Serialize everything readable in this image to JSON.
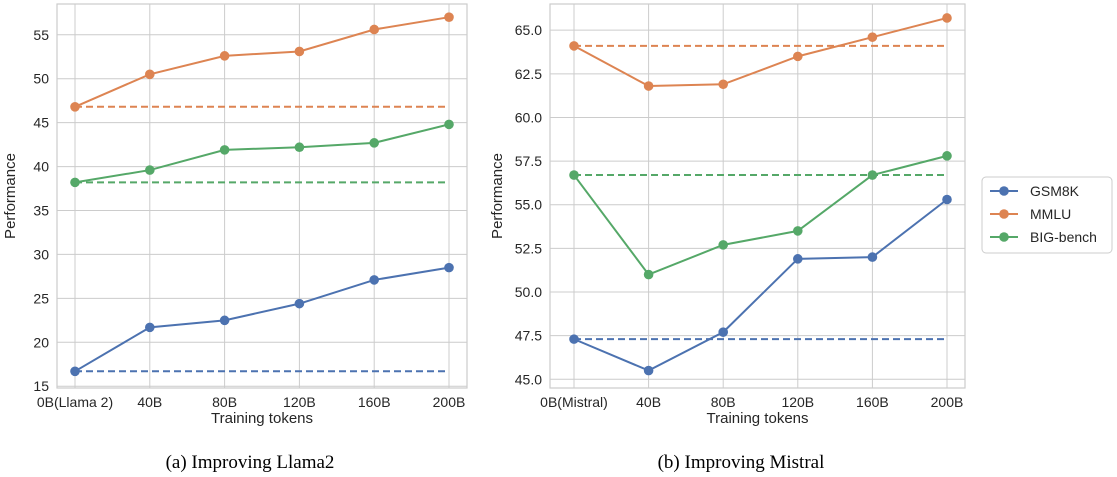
{
  "colors": {
    "GSM8K": "#4c72b0",
    "MMLU": "#dd8452",
    "BIG-bench": "#55a868",
    "grid": "#cccccc",
    "frame": "#cccccc"
  },
  "legend": {
    "entries": [
      "GSM8K",
      "MMLU",
      "BIG-bench"
    ],
    "placement": "right"
  },
  "chart_data": [
    {
      "type": "line",
      "caption": "(a) Improving Llama2",
      "xlabel": "Training tokens",
      "ylabel": "Performance",
      "categories": [
        "0B(Llama 2)",
        "40B",
        "80B",
        "120B",
        "160B",
        "200B"
      ],
      "yticks": [
        15,
        20,
        25,
        30,
        35,
        40,
        45,
        50,
        55
      ],
      "ylim": [
        14.8,
        58.5
      ],
      "grid": true,
      "series": [
        {
          "name": "GSM8K",
          "values": [
            16.7,
            21.7,
            22.5,
            24.4,
            27.1,
            28.5
          ],
          "baseline": 16.7
        },
        {
          "name": "MMLU",
          "values": [
            46.8,
            50.5,
            52.6,
            53.1,
            55.6,
            57.0
          ],
          "baseline": 46.8
        },
        {
          "name": "BIG-bench",
          "values": [
            38.2,
            39.6,
            41.9,
            42.2,
            42.7,
            44.8
          ],
          "baseline": 38.2
        }
      ]
    },
    {
      "type": "line",
      "caption": "(b) Improving Mistral",
      "xlabel": "Training tokens",
      "ylabel": "Performance",
      "categories": [
        "0B(Mistral)",
        "40B",
        "80B",
        "120B",
        "160B",
        "200B"
      ],
      "yticks": [
        "45.0",
        "47.5",
        "50.0",
        "52.5",
        "55.0",
        "57.5",
        "60.0",
        "62.5",
        "65.0"
      ],
      "ylim": [
        44.5,
        66.5
      ],
      "grid": true,
      "series": [
        {
          "name": "GSM8K",
          "values": [
            47.3,
            45.5,
            47.7,
            51.9,
            52.0,
            55.3
          ],
          "baseline": 47.3
        },
        {
          "name": "MMLU",
          "values": [
            64.1,
            61.8,
            61.9,
            63.5,
            64.6,
            65.7
          ],
          "baseline": 64.1
        },
        {
          "name": "BIG-bench",
          "values": [
            56.7,
            51.0,
            52.7,
            53.5,
            56.7,
            57.8
          ],
          "baseline": 56.7
        }
      ]
    }
  ]
}
